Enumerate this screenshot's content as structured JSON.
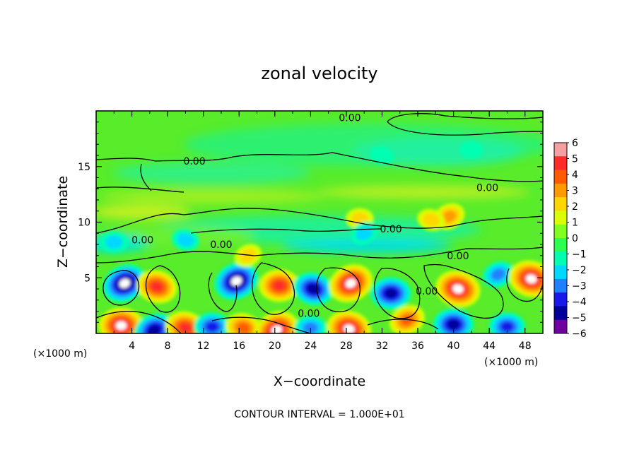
{
  "chart_data": {
    "type": "heatmap",
    "title": "zonal velocity",
    "xlabel": "X−coordinate",
    "ylabel": "Z−coordinate",
    "x_unit_left": "(×1000 m)",
    "x_unit_right": "(×1000 m)",
    "footer": "CONTOUR INTERVAL = 1.000E+01",
    "xlim": [
      0,
      50
    ],
    "ylim": [
      0,
      20
    ],
    "x_ticks": [
      4,
      8,
      12,
      16,
      20,
      24,
      28,
      32,
      36,
      40,
      44,
      48
    ],
    "y_ticks": [
      5,
      10,
      15
    ],
    "colorbar": {
      "ticks": [
        6,
        5,
        4,
        3,
        2,
        1,
        0,
        -1,
        -2,
        -3,
        -4,
        -5,
        -6
      ],
      "tick_labels": [
        "6",
        "5",
        "4",
        "3",
        "2",
        "1",
        "0",
        "−1",
        "−2",
        "−3",
        "−4",
        "−5",
        "−6"
      ],
      "colors": [
        "#f4a0a0",
        "#ff2a2a",
        "#ff5a00",
        "#ff9a00",
        "#ffd700",
        "#d9ff00",
        "#80ff20",
        "#2cff50",
        "#00ffb0",
        "#00d8ff",
        "#2080ff",
        "#1818e8",
        "#000099",
        "#7000a0"
      ]
    },
    "contour_labels": [
      {
        "text": "0.00",
        "x": 28.4,
        "y": 19.4
      },
      {
        "text": "0.00",
        "x": 11.0,
        "y": 15.5
      },
      {
        "text": "0.00",
        "x": 43.8,
        "y": 13.1
      },
      {
        "text": "0.00",
        "x": 33.0,
        "y": 9.4
      },
      {
        "text": "0.00",
        "x": 5.2,
        "y": 8.4
      },
      {
        "text": "0.00",
        "x": 14.0,
        "y": 8.0
      },
      {
        "text": "0.00",
        "x": 40.5,
        "y": 7.0
      },
      {
        "text": "0.00",
        "x": 37.0,
        "y": 3.8
      },
      {
        "text": "0.00",
        "x": 23.8,
        "y": 1.8
      }
    ],
    "features": [
      {
        "x": 3.2,
        "z": 4.5,
        "value": -6
      },
      {
        "x": 6.8,
        "z": 4.2,
        "value": 5
      },
      {
        "x": 2.8,
        "z": 0.7,
        "value": 6
      },
      {
        "x": 6.5,
        "z": 0.3,
        "value": -5
      },
      {
        "x": 10.0,
        "z": 0.5,
        "value": 5
      },
      {
        "x": 13.0,
        "z": 0.6,
        "value": -4
      },
      {
        "x": 15.7,
        "z": 4.7,
        "value": -6
      },
      {
        "x": 16.5,
        "z": 0.5,
        "value": 4
      },
      {
        "x": 20.5,
        "z": 4.3,
        "value": 5
      },
      {
        "x": 20.2,
        "z": 0.3,
        "value": 6
      },
      {
        "x": 24.3,
        "z": 4.0,
        "value": -5
      },
      {
        "x": 24.0,
        "z": 0.5,
        "value": -3
      },
      {
        "x": 28.5,
        "z": 4.5,
        "value": 6
      },
      {
        "x": 28.3,
        "z": 0.4,
        "value": 6
      },
      {
        "x": 33.0,
        "z": 3.6,
        "value": -5
      },
      {
        "x": 34.8,
        "z": 1.2,
        "value": 4
      },
      {
        "x": 40.5,
        "z": 4.0,
        "value": 6
      },
      {
        "x": 40.0,
        "z": 0.8,
        "value": -5
      },
      {
        "x": 45.0,
        "z": 5.3,
        "value": -3
      },
      {
        "x": 48.7,
        "z": 4.9,
        "value": 6
      },
      {
        "x": 46.0,
        "z": 0.6,
        "value": -4
      },
      {
        "x": 39.5,
        "z": 10.5,
        "value": 3
      },
      {
        "x": 37.5,
        "z": 10.2,
        "value": 2
      },
      {
        "x": 29.5,
        "z": 10.3,
        "value": 2
      },
      {
        "x": 17.0,
        "z": 7.0,
        "value": 2
      },
      {
        "x": 32.0,
        "z": 16.0,
        "value": -1
      },
      {
        "x": 42.0,
        "z": 16.5,
        "value": -1
      },
      {
        "x": 30.0,
        "z": 9.0,
        "value": -2
      },
      {
        "x": 10.0,
        "z": 8.4,
        "value": -2
      },
      {
        "x": 2.0,
        "z": 8.2,
        "value": -2
      }
    ]
  }
}
